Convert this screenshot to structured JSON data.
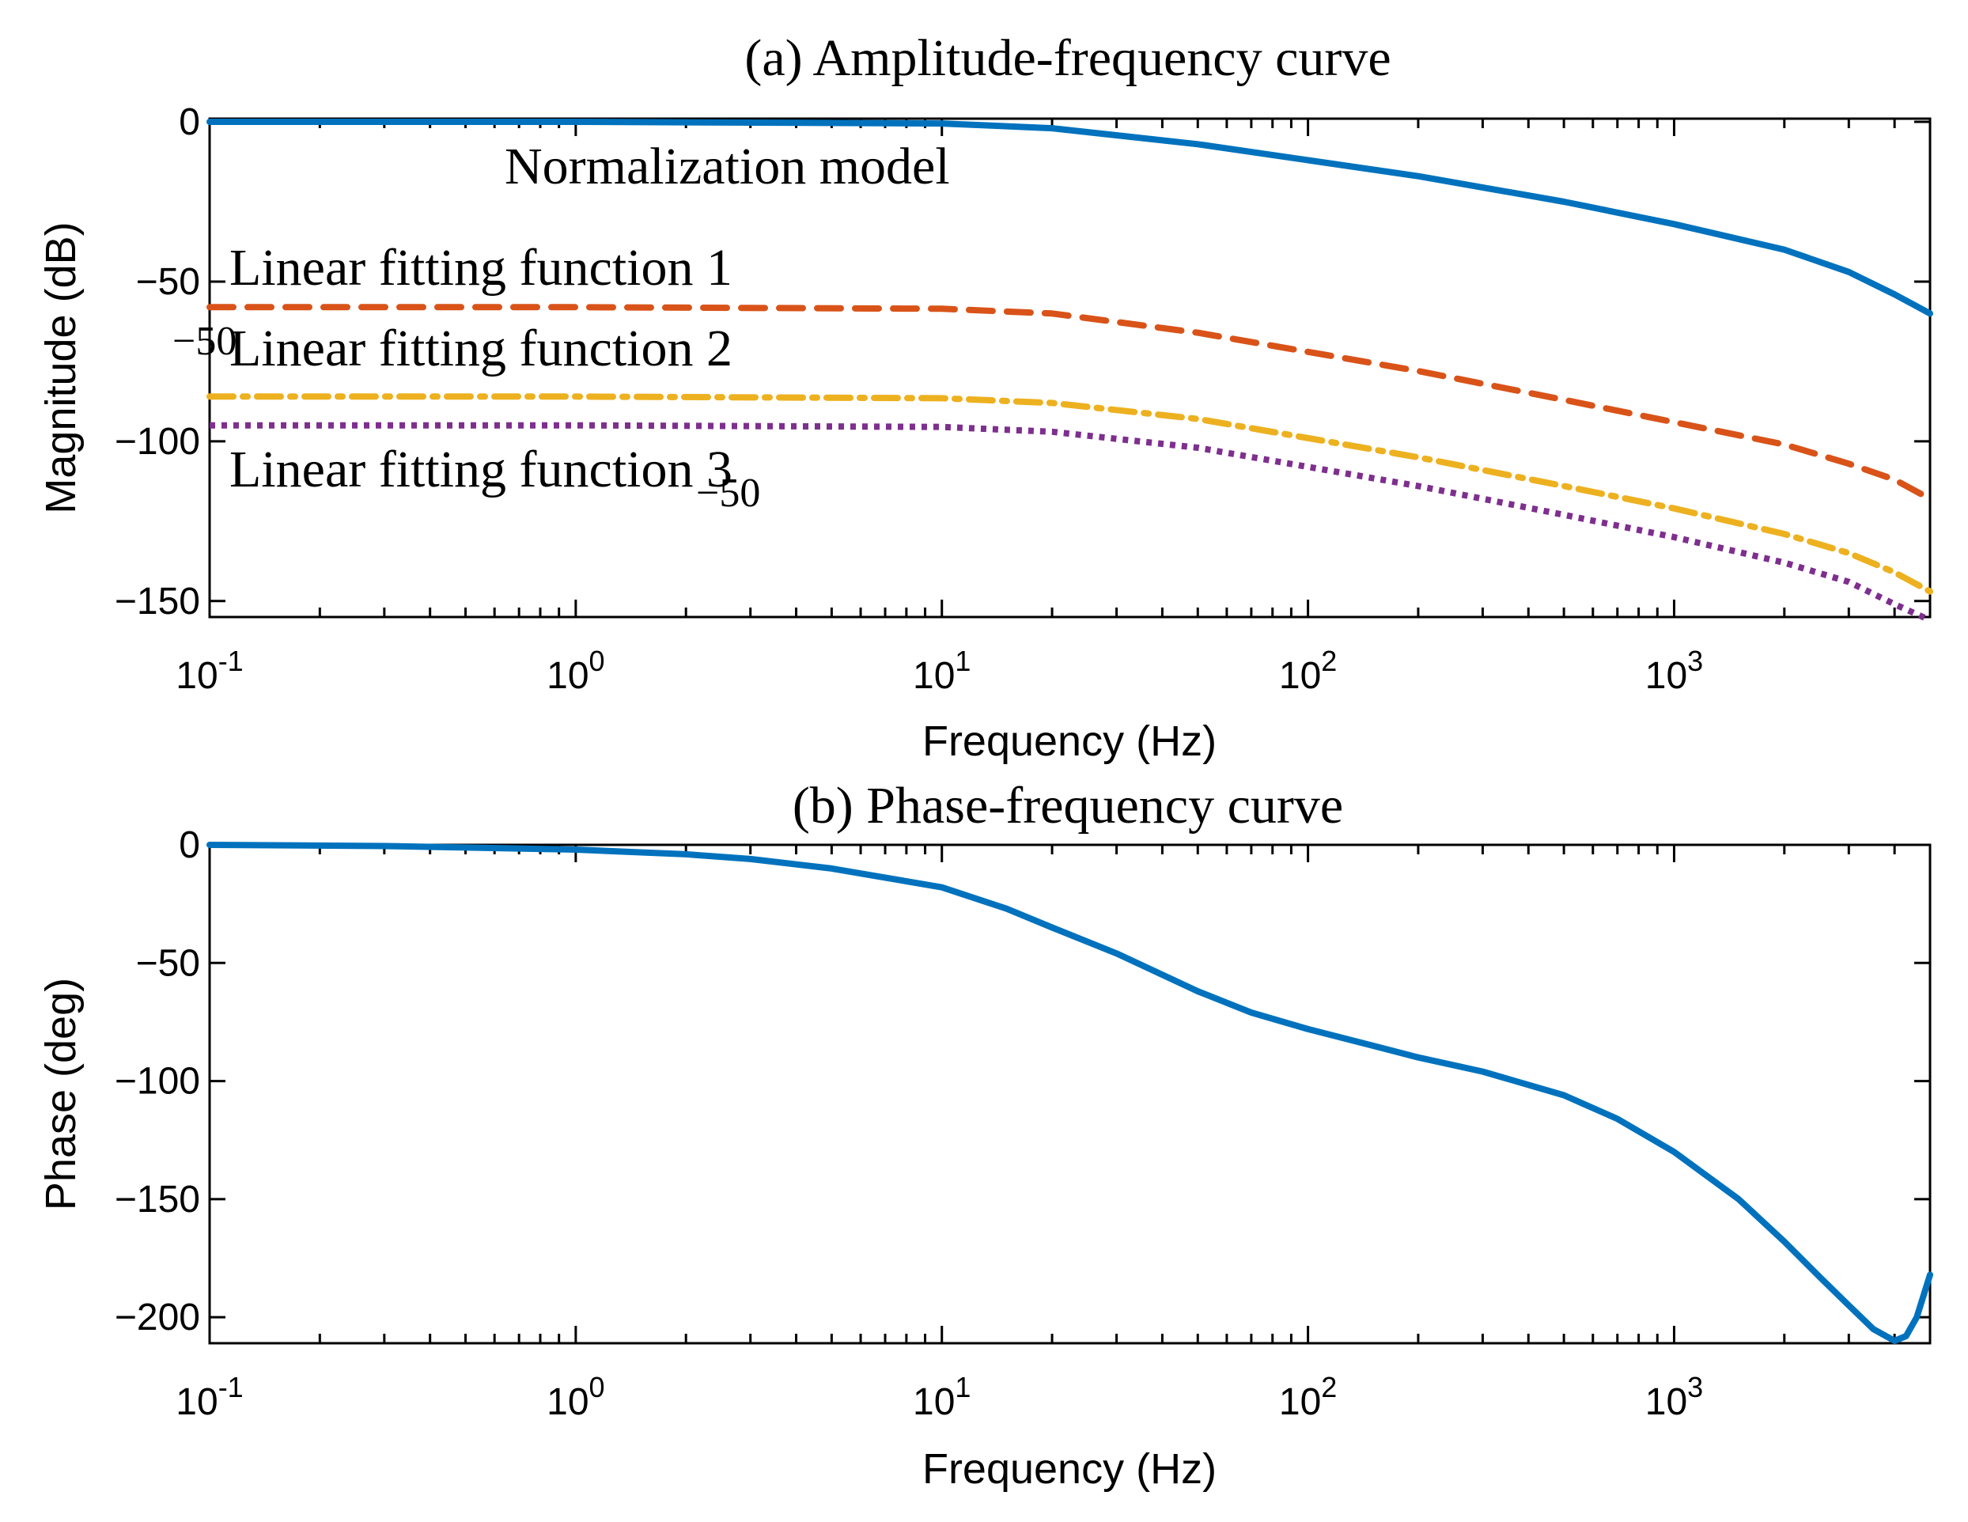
{
  "chart_data": [
    {
      "type": "line",
      "title": "(a) Amplitude-frequency curve",
      "xlabel": "Frequency (Hz)",
      "ylabel": "Magnitude (dB)",
      "xscale": "log",
      "xlim": [
        0.1,
        5000
      ],
      "ylim": [
        -155,
        1
      ],
      "xticks": [
        0.1,
        1,
        10,
        100,
        1000
      ],
      "xtick_labels": [
        {
          "base": "10",
          "exp": "-1"
        },
        {
          "base": "10",
          "exp": "0"
        },
        {
          "base": "10",
          "exp": "1"
        },
        {
          "base": "10",
          "exp": "2"
        },
        {
          "base": "10",
          "exp": "3"
        }
      ],
      "yticks": [
        0,
        -50,
        -100,
        -150
      ],
      "ytick_labels": [
        "0",
        "−50",
        "−100",
        "−150"
      ],
      "series": [
        {
          "name": "Normalization model",
          "color": "#0072BD",
          "style": "solid",
          "x": [
            0.1,
            1,
            10,
            20,
            50,
            100,
            200,
            500,
            1000,
            2000,
            3000,
            4000,
            5000
          ],
          "y": [
            0,
            0,
            -0.5,
            -2,
            -7,
            -12,
            -17,
            -25,
            -32,
            -40,
            -47,
            -54,
            -60
          ]
        },
        {
          "name": "Linear fitting function 1",
          "color": "#D95319",
          "style": "dashed",
          "x": [
            0.1,
            1,
            10,
            20,
            50,
            100,
            200,
            500,
            1000,
            2000,
            3000,
            4000,
            5000
          ],
          "y": [
            -58,
            -58,
            -58.5,
            -60,
            -66,
            -72,
            -78,
            -87,
            -94,
            -101,
            -107,
            -112,
            -118
          ]
        },
        {
          "name": "Linear fitting function 2",
          "color": "#EDB120",
          "style": "dashdot",
          "x": [
            0.1,
            1,
            10,
            20,
            50,
            100,
            200,
            500,
            1000,
            2000,
            3000,
            4000,
            5000
          ],
          "y": [
            -86,
            -86,
            -86.5,
            -88,
            -93,
            -99,
            -105,
            -114,
            -121,
            -129,
            -135,
            -141,
            -147
          ]
        },
        {
          "name": "Linear fitting function 3",
          "color": "#7E2F8E",
          "style": "dotted",
          "x": [
            0.1,
            1,
            10,
            20,
            50,
            100,
            200,
            500,
            1000,
            2000,
            3000,
            4000,
            5000
          ],
          "y": [
            -95,
            -95,
            -95.5,
            -97,
            -102,
            -108,
            -114,
            -123,
            -130,
            -138,
            -144,
            -151,
            -156
          ]
        }
      ],
      "annotations": [
        "Normalization model",
        "Linear fitting function 1",
        "Linear fitting function 2",
        "Linear fitting function 3"
      ],
      "stray_labels": [
        "−50",
        "−50"
      ]
    },
    {
      "type": "line",
      "title": "(b) Phase-frequency curve",
      "xlabel": "Frequency (Hz)",
      "ylabel": "Phase (deg)",
      "xscale": "log",
      "xlim": [
        0.1,
        5000
      ],
      "ylim": [
        -211,
        0
      ],
      "xticks": [
        0.1,
        1,
        10,
        100,
        1000
      ],
      "xtick_labels": [
        {
          "base": "10",
          "exp": "-1"
        },
        {
          "base": "10",
          "exp": "0"
        },
        {
          "base": "10",
          "exp": "1"
        },
        {
          "base": "10",
          "exp": "2"
        },
        {
          "base": "10",
          "exp": "3"
        }
      ],
      "yticks": [
        0,
        -50,
        -100,
        -150,
        -200
      ],
      "ytick_labels": [
        "0",
        "−50",
        "−100",
        "−150",
        "−200"
      ],
      "series": [
        {
          "name": "Phase",
          "color": "#0072BD",
          "style": "solid",
          "x": [
            0.1,
            0.3,
            1,
            2,
            3,
            5,
            10,
            15,
            20,
            30,
            50,
            70,
            100,
            150,
            200,
            300,
            500,
            700,
            1000,
            1500,
            2000,
            2500,
            3000,
            3500,
            4000,
            4300,
            4600,
            5000
          ],
          "y": [
            0,
            -0.5,
            -2,
            -4,
            -6,
            -10,
            -18,
            -27,
            -35,
            -46,
            -62,
            -71,
            -78,
            -85,
            -90,
            -96,
            -106,
            -116,
            -130,
            -150,
            -168,
            -183,
            -195,
            -205,
            -210,
            -208,
            -200,
            -182
          ]
        }
      ]
    }
  ]
}
